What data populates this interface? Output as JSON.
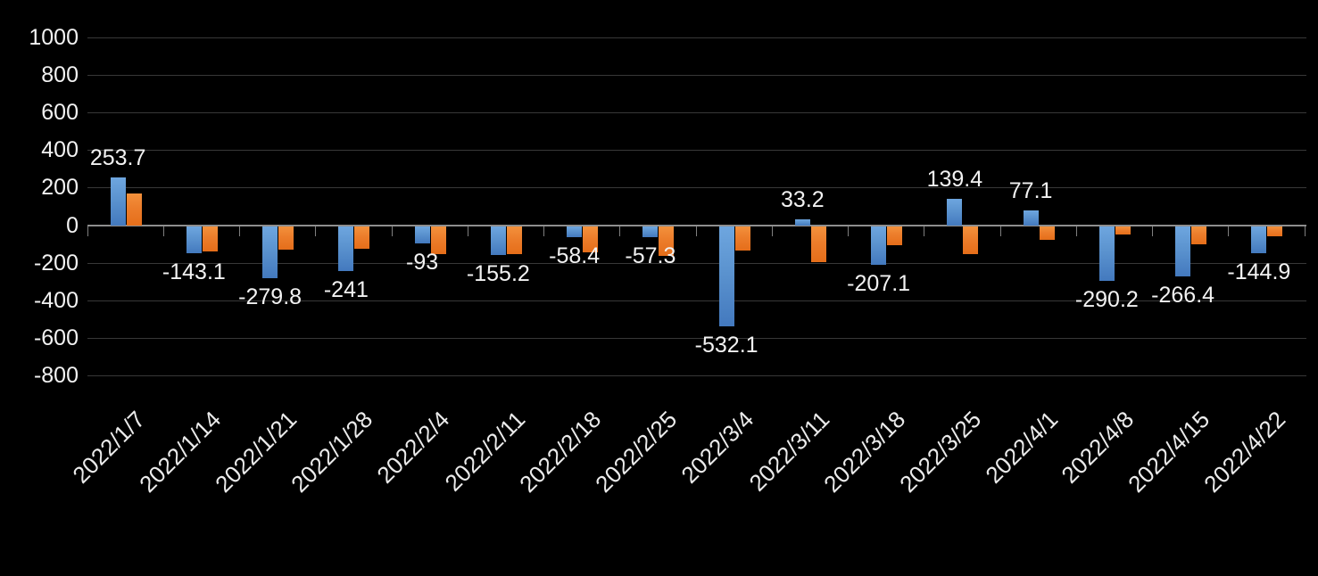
{
  "chart_data": {
    "type": "bar",
    "title": "",
    "legend": "none",
    "grid": "horizontal",
    "background_color": "#000000",
    "gridline_color": "#383838",
    "axis_line_color": "#8E8E8E",
    "text_color": "#F2F2F2",
    "categories": [
      "2022/1/7",
      "2022/1/14",
      "2022/1/21",
      "2022/1/28",
      "2022/2/4",
      "2022/2/11",
      "2022/2/18",
      "2022/2/25",
      "2022/3/4",
      "2022/3/11",
      "2022/3/18",
      "2022/3/25",
      "2022/4/1",
      "2022/4/8",
      "2022/4/15",
      "2022/4/22"
    ],
    "series": [
      {
        "key": "blue-series",
        "color": "#5B9BD5",
        "values": [
          253.7,
          -143.1,
          -279.8,
          -241,
          -93,
          -155.2,
          -58.4,
          -57.3,
          -532.1,
          33.2,
          -207.1,
          139.4,
          77.1,
          -290.2,
          -266.4,
          -144.9
        ],
        "labels": [
          "253.7",
          "-143.1",
          "-279.8",
          "-241",
          "-93",
          "-155.2",
          "-58.4",
          "-57.3",
          "-532.1",
          "33.2",
          "-207.1",
          "139.4",
          "77.1",
          "-290.2",
          "-266.4",
          "-144.9"
        ],
        "labels_visible": true
      },
      {
        "key": "orange-series",
        "color": "#ED7D31",
        "values": [
          170,
          -135,
          -125,
          -120,
          -150,
          -150,
          -140,
          -160,
          -130,
          -190,
          -100,
          -150,
          -75,
          -45,
          -95,
          -55
        ],
        "labels_visible": false
      }
    ],
    "y_axis": {
      "min": -800,
      "max": 1000,
      "step": 200,
      "ticks": [
        "1000",
        "800",
        "600",
        "400",
        "200",
        "0",
        "-200",
        "-400",
        "-600",
        "-800"
      ]
    },
    "x_axis": {
      "label_rotation_deg": -45
    }
  }
}
